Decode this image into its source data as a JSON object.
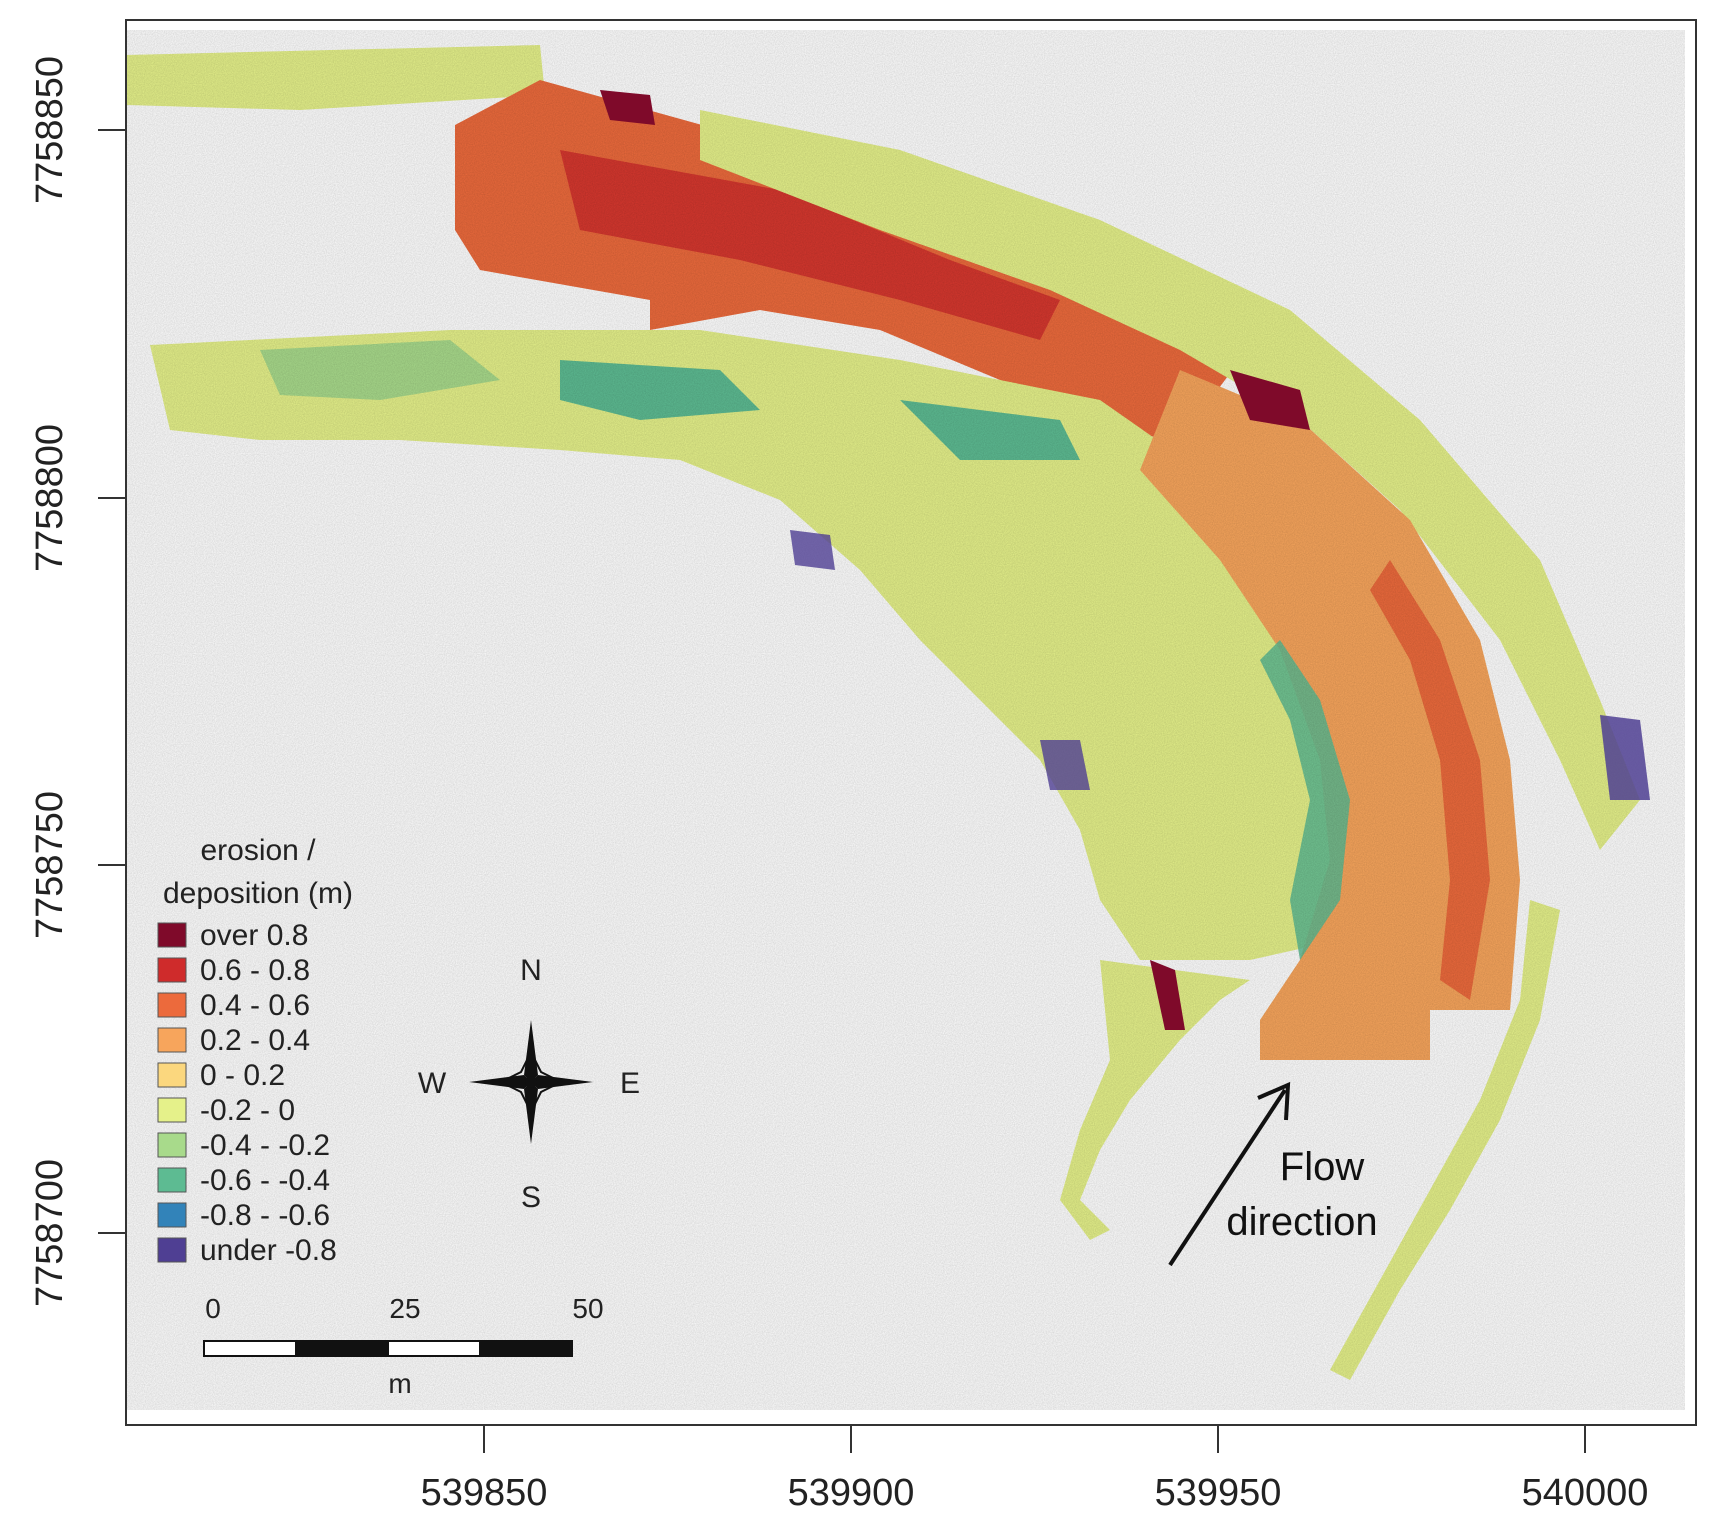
{
  "map": {
    "x_ticks": [
      "539850",
      "539900",
      "539950",
      "540000"
    ],
    "y_ticks": [
      "7758850",
      "7758800",
      "7758750",
      "7758700"
    ],
    "legend": {
      "title_line1": "erosion /",
      "title_line2": "deposition (m)",
      "classes": [
        {
          "label": "over 0.8",
          "color": "#7f0a2a"
        },
        {
          "label": "0.6 - 0.8",
          "color": "#cf2b2b"
        },
        {
          "label": "0.4 - 0.6",
          "color": "#ec6a3c"
        },
        {
          "label": "0.2 - 0.4",
          "color": "#f7a55c"
        },
        {
          "label": "0 - 0.2",
          "color": "#fbd77e"
        },
        {
          "label": "-0.2 - 0",
          "color": "#e5f18a"
        },
        {
          "label": "-0.4 - -0.2",
          "color": "#a8da8b"
        },
        {
          "label": "-0.6 - -0.4",
          "color": "#5dbb92"
        },
        {
          "label": "-0.8 - -0.6",
          "color": "#3283b9"
        },
        {
          "label": "under -0.8",
          "color": "#4f3f93"
        }
      ]
    },
    "compass": {
      "north": "N",
      "south": "S",
      "east": "E",
      "west": "W"
    },
    "scale_bar": {
      "labels": [
        "0",
        "25",
        "50"
      ],
      "unit": "m"
    },
    "annotation": {
      "line1": "Flow",
      "line2": "direction"
    }
  }
}
